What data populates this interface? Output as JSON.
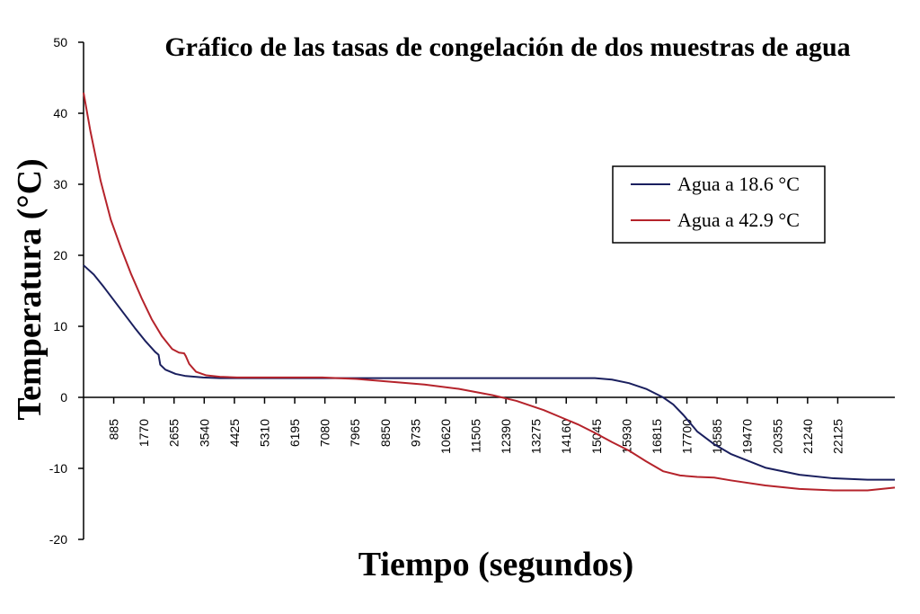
{
  "chart_data": {
    "type": "line",
    "title": "Gráfico de las tasas de congelación de dos muestras de agua",
    "xlabel": "Tiempo (segundos)",
    "ylabel": "Temperatura (°C)",
    "xlim": [
      0,
      23800
    ],
    "ylim": [
      -20,
      50
    ],
    "y_ticks": [
      50,
      40,
      30,
      20,
      10,
      0,
      -10,
      -20
    ],
    "x_tick_values": [
      885,
      1770,
      2655,
      3540,
      4425,
      5310,
      6195,
      7080,
      7965,
      8850,
      9735,
      10620,
      11505,
      12390,
      13275,
      14160,
      15045,
      15930,
      16815,
      17700,
      18585,
      19470,
      20355,
      21240,
      22125
    ],
    "grid": false,
    "legend_position": "top-right",
    "series": [
      {
        "name": "Agua a 18.6 °C",
        "color": "#1a1f5e",
        "x": [
          0,
          300,
          600,
          900,
          1200,
          1500,
          1800,
          2100,
          2200,
          2250,
          2400,
          2700,
          3000,
          3500,
          4000,
          5000,
          7000,
          9000,
          11000,
          13000,
          15000,
          15500,
          16000,
          16500,
          17000,
          17300,
          17600,
          18000,
          18500,
          19000,
          20000,
          21000,
          22000,
          23000,
          23800
        ],
        "y": [
          18.6,
          17.3,
          15.5,
          13.6,
          11.7,
          9.8,
          8.0,
          6.4,
          6.0,
          4.6,
          3.9,
          3.3,
          3.0,
          2.8,
          2.7,
          2.7,
          2.7,
          2.7,
          2.7,
          2.7,
          2.7,
          2.5,
          2.0,
          1.2,
          0.0,
          -1.0,
          -2.5,
          -4.8,
          -6.6,
          -8.0,
          -9.9,
          -10.9,
          -11.4,
          -11.6,
          -11.6
        ]
      },
      {
        "name": "Agua a 42.9 °C",
        "color": "#b5232b",
        "x": [
          0,
          200,
          500,
          800,
          1100,
          1400,
          1700,
          2000,
          2300,
          2600,
          2800,
          2950,
          3000,
          3100,
          3300,
          3600,
          4000,
          4500,
          5000,
          6000,
          7000,
          8000,
          9000,
          10000,
          11000,
          12000,
          12700,
          13500,
          14000,
          14500,
          15000,
          15500,
          16000,
          16500,
          17000,
          17500,
          18000,
          18500,
          19000,
          20000,
          21000,
          22000,
          23000,
          23800
        ],
        "y": [
          42.9,
          37.5,
          30.5,
          25.0,
          21.0,
          17.3,
          14.0,
          11.0,
          8.6,
          6.8,
          6.3,
          6.2,
          5.8,
          4.7,
          3.6,
          3.1,
          2.9,
          2.8,
          2.8,
          2.8,
          2.8,
          2.6,
          2.2,
          1.8,
          1.2,
          0.3,
          -0.5,
          -1.8,
          -2.8,
          -3.8,
          -5.0,
          -6.3,
          -7.5,
          -9.0,
          -10.4,
          -11.0,
          -11.2,
          -11.3,
          -11.7,
          -12.4,
          -12.9,
          -13.1,
          -13.1,
          -12.7
        ]
      }
    ]
  }
}
